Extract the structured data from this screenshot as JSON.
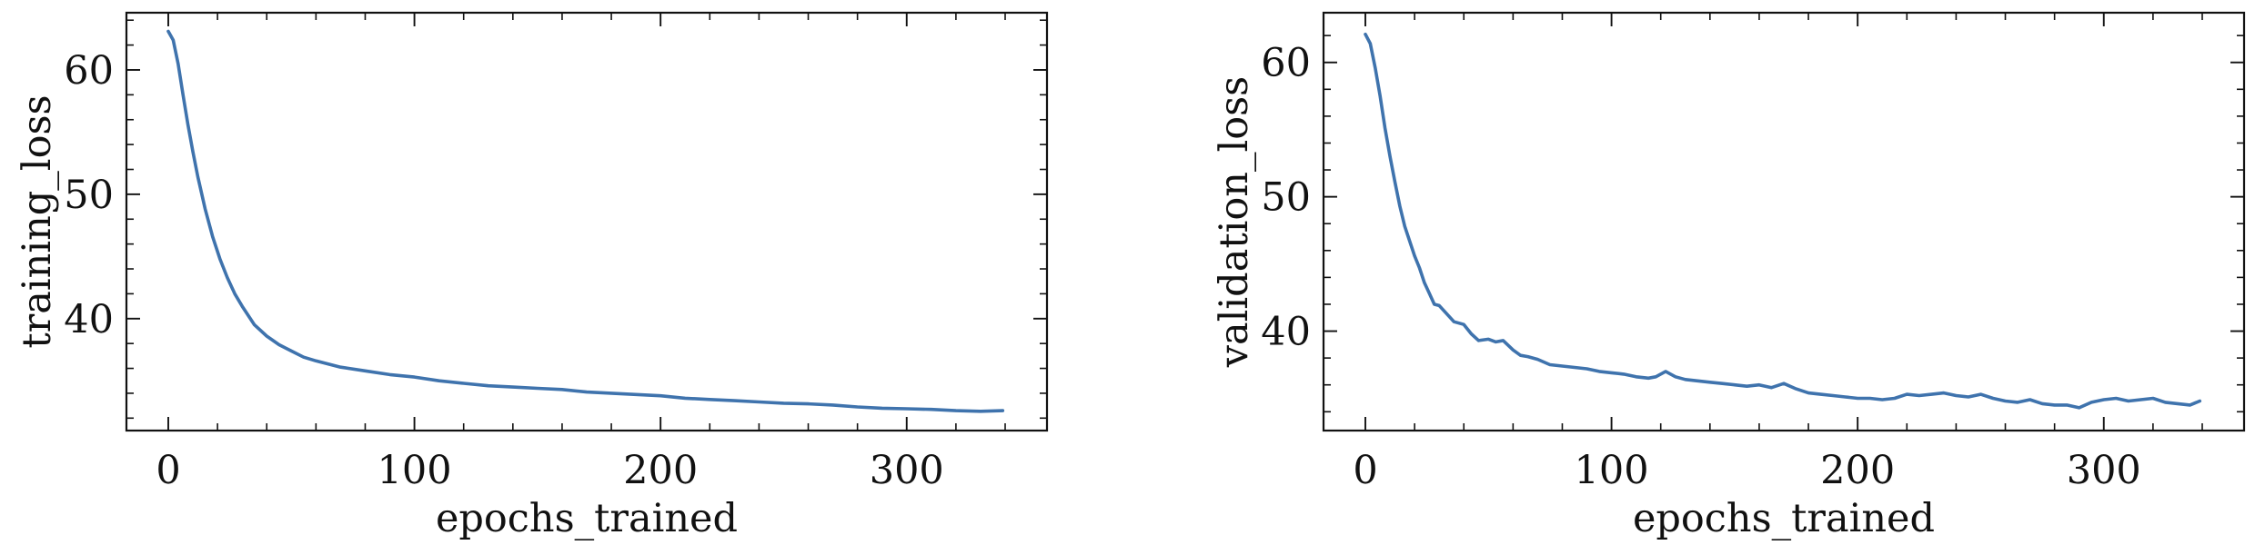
{
  "chart_data": [
    {
      "type": "line",
      "xlabel": "epochs_trained",
      "ylabel": "training_loss",
      "xlim": [
        -17,
        357
      ],
      "ylim": [
        31.0,
        64.6
      ],
      "xticks": [
        0,
        100,
        200,
        300
      ],
      "yticks": [
        40,
        50,
        60
      ],
      "x_minor_step": 20,
      "y_minor_step": 2,
      "grid": false,
      "series": [
        {
          "color": "#3f73ad",
          "x": [
            0,
            2,
            4,
            6,
            8,
            10,
            12,
            15,
            18,
            21,
            24,
            27,
            30,
            35,
            40,
            45,
            50,
            55,
            60,
            70,
            80,
            90,
            100,
            110,
            120,
            130,
            140,
            150,
            160,
            170,
            180,
            190,
            200,
            210,
            220,
            230,
            240,
            250,
            260,
            270,
            280,
            290,
            300,
            310,
            320,
            330,
            339
          ],
          "y": [
            63.1,
            62.4,
            60.5,
            58.0,
            55.6,
            53.4,
            51.4,
            48.8,
            46.6,
            44.8,
            43.3,
            42.0,
            41.0,
            39.5,
            38.6,
            37.9,
            37.4,
            36.9,
            36.6,
            36.1,
            35.8,
            35.5,
            35.3,
            35.0,
            34.8,
            34.6,
            34.5,
            34.4,
            34.3,
            34.1,
            34.0,
            33.9,
            33.8,
            33.6,
            33.5,
            33.4,
            33.3,
            33.2,
            33.15,
            33.05,
            32.9,
            32.8,
            32.75,
            32.7,
            32.6,
            32.55,
            32.6
          ]
        }
      ]
    },
    {
      "type": "line",
      "xlabel": "epochs_trained",
      "ylabel": "validation_loss",
      "xlim": [
        -17,
        357
      ],
      "ylim": [
        32.6,
        63.7
      ],
      "xticks": [
        0,
        100,
        200,
        300
      ],
      "yticks": [
        40,
        50,
        60
      ],
      "x_minor_step": 20,
      "y_minor_step": 2,
      "grid": false,
      "series": [
        {
          "color": "#3f73ad",
          "x": [
            0,
            2,
            4,
            6,
            8,
            10,
            12,
            14,
            16,
            18,
            20,
            22,
            24,
            26,
            28,
            30,
            33,
            36,
            40,
            43,
            46,
            50,
            53,
            56,
            60,
            63,
            66,
            70,
            75,
            80,
            85,
            90,
            95,
            100,
            105,
            110,
            115,
            118,
            122,
            126,
            130,
            135,
            140,
            145,
            150,
            155,
            160,
            165,
            170,
            175,
            180,
            185,
            190,
            195,
            200,
            205,
            210,
            215,
            220,
            225,
            230,
            235,
            240,
            245,
            250,
            255,
            260,
            265,
            270,
            275,
            280,
            285,
            290,
            295,
            300,
            305,
            310,
            315,
            320,
            325,
            330,
            335,
            339
          ],
          "y": [
            62.1,
            61.4,
            59.6,
            57.5,
            55.1,
            53.0,
            51.1,
            49.3,
            47.8,
            46.7,
            45.6,
            44.7,
            43.6,
            42.8,
            42.0,
            41.9,
            41.3,
            40.7,
            40.5,
            39.8,
            39.3,
            39.4,
            39.2,
            39.3,
            38.6,
            38.2,
            38.1,
            37.9,
            37.5,
            37.4,
            37.3,
            37.2,
            37.0,
            36.9,
            36.8,
            36.6,
            36.5,
            36.6,
            37.0,
            36.6,
            36.4,
            36.3,
            36.2,
            36.1,
            36.0,
            35.9,
            36.0,
            35.8,
            36.1,
            35.7,
            35.4,
            35.3,
            35.2,
            35.1,
            35.0,
            35.0,
            34.9,
            35.0,
            35.3,
            35.2,
            35.3,
            35.4,
            35.2,
            35.1,
            35.3,
            35.0,
            34.8,
            34.7,
            34.9,
            34.6,
            34.5,
            34.5,
            34.3,
            34.7,
            34.9,
            35.0,
            34.8,
            34.9,
            35.0,
            34.7,
            34.6,
            34.5,
            34.8
          ]
        }
      ]
    }
  ]
}
